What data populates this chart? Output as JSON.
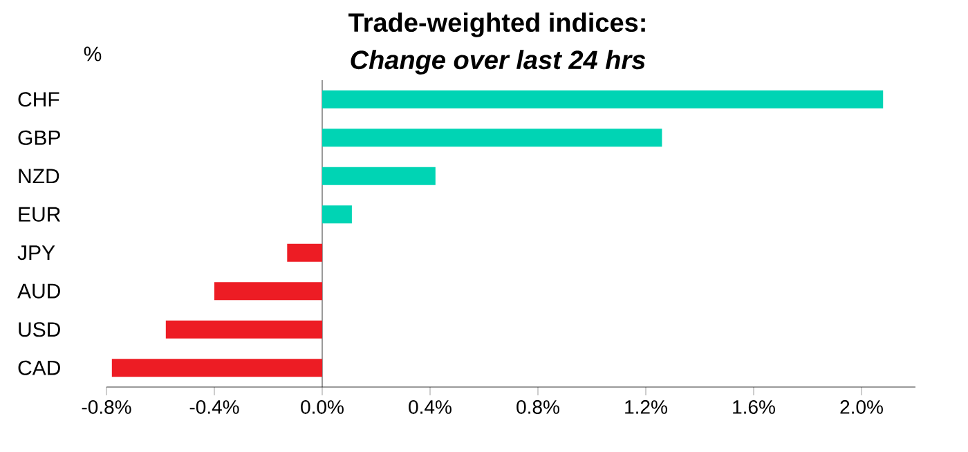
{
  "chart_data": {
    "type": "bar",
    "orientation": "horizontal",
    "title": "Trade-weighted indices:",
    "subtitle": "*Change over last 24 hrs*",
    "ylabel": "%",
    "categories": [
      "CHF",
      "GBP",
      "NZD",
      "EUR",
      "JPY",
      "AUD",
      "USD",
      "CAD"
    ],
    "values": [
      2.08,
      1.26,
      0.42,
      0.11,
      -0.13,
      -0.4,
      -0.58,
      -0.78
    ],
    "colors": [
      "#00d4b4",
      "#00d4b4",
      "#00d4b4",
      "#00d4b4",
      "#ed1c24",
      "#ed1c24",
      "#ed1c24",
      "#ed1c24"
    ],
    "xlim": [
      -0.8,
      2.2
    ],
    "xticks": [
      {
        "value": -0.8,
        "label": "-0.8%"
      },
      {
        "value": -0.4,
        "label": "-0.4%"
      },
      {
        "value": 0,
        "label": "0.0%"
      },
      {
        "value": 0.4,
        "label": "0.4%"
      },
      {
        "value": 0.8,
        "label": "0.8%"
      },
      {
        "value": 1.2,
        "label": "1.2%"
      },
      {
        "value": 1.6,
        "label": "1.6%"
      },
      {
        "value": 2.0,
        "label": "2.0%"
      }
    ]
  }
}
